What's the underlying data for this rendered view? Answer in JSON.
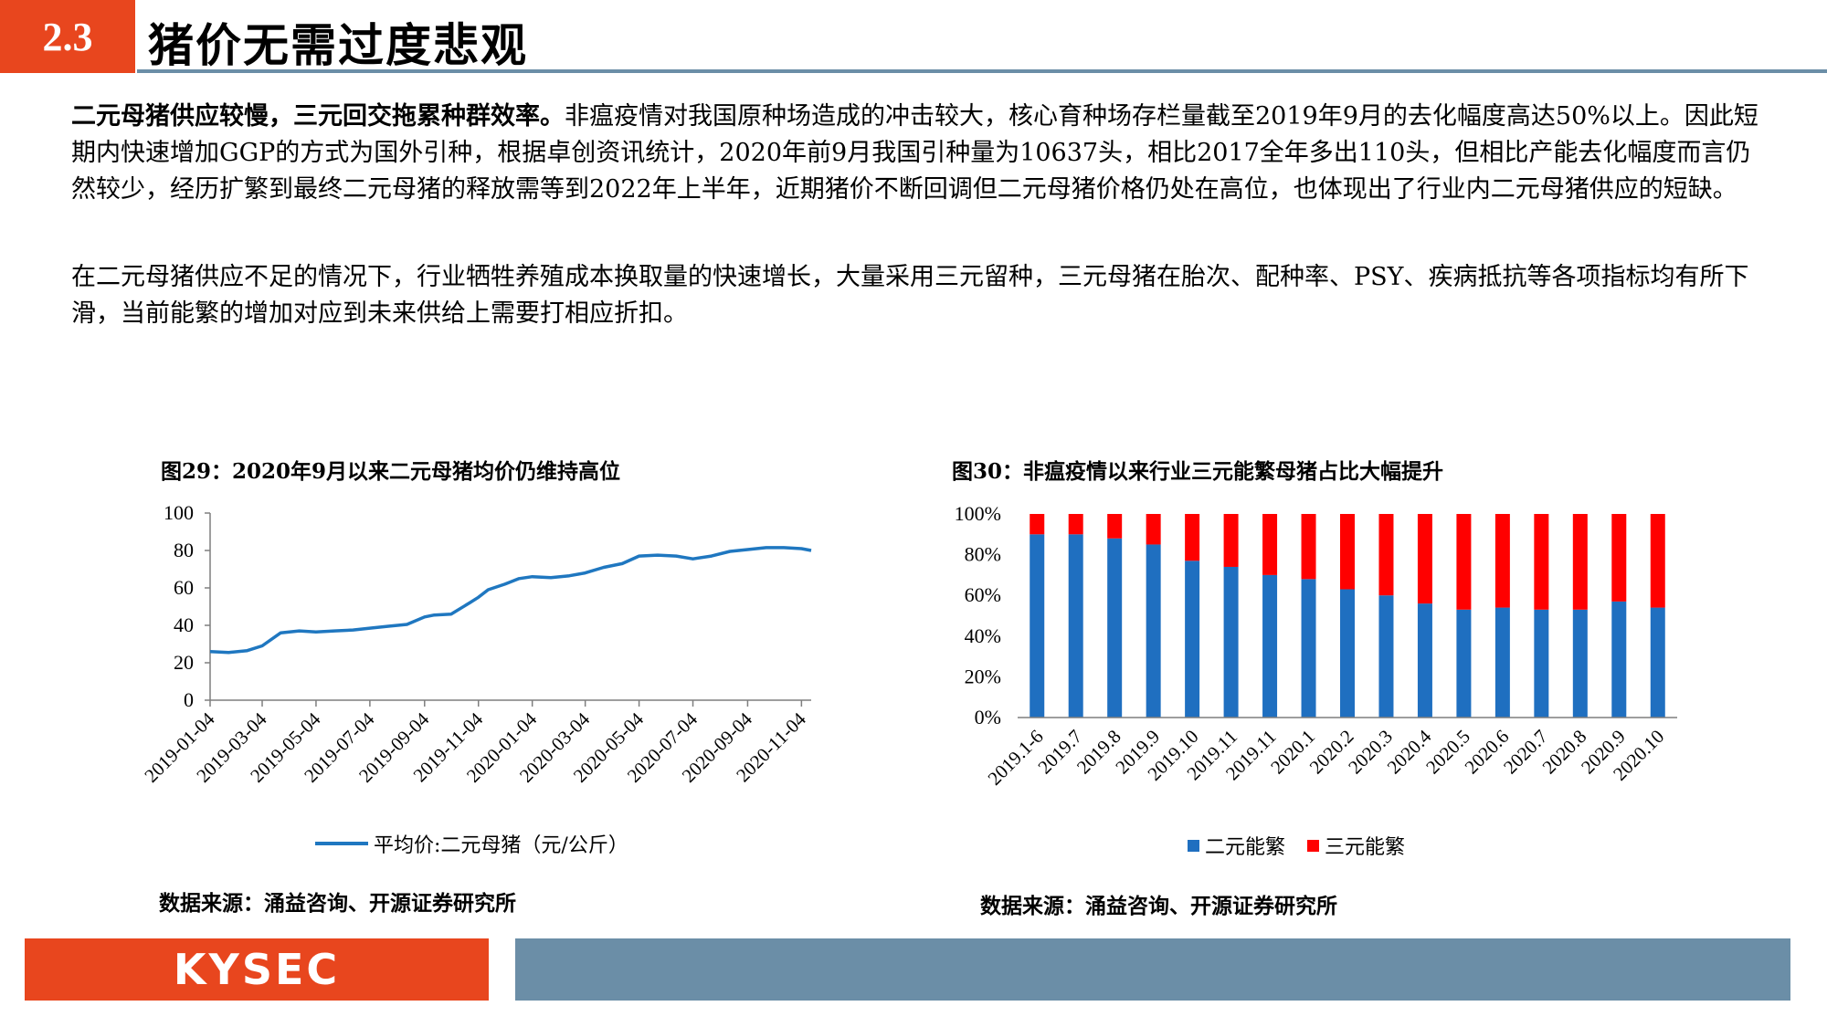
{
  "header": {
    "section_number": "2.3",
    "section_title": "猪价无需过度悲观"
  },
  "paragraphs": {
    "p1_bold": "二元母猪供应较慢，三元回交拖累种群效率。",
    "p1_rest": "非瘟疫情对我国原种场造成的冲击较大，核心育种场存栏量截至2019年9月的去化幅度高达50%以上。因此短期内快速增加GGP的方式为国外引种，根据卓创资讯统计，2020年前9月我国引种量为10637头，相比2017全年多出110头，但相比产能去化幅度而言仍然较少，经历扩繁到最终二元母猪的释放需等到2022年上半年，近期猪价不断回调但二元母猪价格仍处在高位，也体现出了行业内二元母猪供应的短缺。",
    "p2": "在二元母猪供应不足的情况下，行业牺牲养殖成本换取量的快速增长，大量采用三元留种，三元母猪在胎次、配种率、PSY、疾病抵抗等各项指标均有所下滑，当前能繁的增加对应到未来供给上需要打相应折扣。"
  },
  "figures": {
    "fig29_title": "图29：2020年9月以来二元母猪均价仍维持高位",
    "fig29_source": "数据来源：涌益咨询、开源证券研究所",
    "fig30_title": "图30：非瘟疫情以来行业三元能繁母猪占比大幅提升",
    "fig30_source": "数据来源：涌益咨询、开源证券研究所"
  },
  "footer": {
    "logo_text": "KYSEC"
  },
  "chart_data": [
    {
      "type": "line",
      "title": "图29：2020年9月以来二元母猪均价仍维持高位",
      "x_tick_labels": [
        "2019-01-04",
        "2019-03-04",
        "2019-05-04",
        "2019-07-04",
        "2019-09-04",
        "2019-11-04",
        "2020-01-04",
        "2020-03-04",
        "2020-05-04",
        "2020-07-04",
        "2020-09-04",
        "2020-11-04"
      ],
      "x": [
        "2019-01-04",
        "2019-01-25",
        "2019-02-15",
        "2019-03-04",
        "2019-03-25",
        "2019-04-15",
        "2019-05-04",
        "2019-05-25",
        "2019-06-15",
        "2019-07-04",
        "2019-07-25",
        "2019-08-15",
        "2019-09-04",
        "2019-09-15",
        "2019-10-04",
        "2019-10-25",
        "2019-11-04",
        "2019-11-15",
        "2019-12-04",
        "2019-12-20",
        "2020-01-04",
        "2020-01-25",
        "2020-02-15",
        "2020-03-04",
        "2020-03-25",
        "2020-04-15",
        "2020-05-04",
        "2020-05-25",
        "2020-06-15",
        "2020-07-04",
        "2020-07-25",
        "2020-08-15",
        "2020-09-04",
        "2020-09-25",
        "2020-10-15",
        "2020-11-04",
        "2020-11-15"
      ],
      "series": [
        {
          "name": "平均价:二元母猪（元/公斤）",
          "color": "#1f77c0",
          "values": [
            26,
            25.5,
            26.5,
            29,
            36,
            37,
            36.5,
            37,
            37.5,
            38.5,
            39.5,
            40.5,
            44.5,
            45.5,
            46,
            52,
            55,
            59,
            62,
            65,
            66,
            65.5,
            66.5,
            68,
            71,
            73,
            77,
            77.5,
            77,
            75.5,
            77,
            79.5,
            80.5,
            81.5,
            81.5,
            81,
            80
          ]
        }
      ],
      "ylim": [
        0,
        100
      ],
      "y_ticks": [
        0,
        20,
        40,
        60,
        80,
        100
      ],
      "legend": "bottom",
      "grid": false
    },
    {
      "type": "bar",
      "stacked": true,
      "title": "图30：非瘟疫情以来行业三元能繁母猪占比大幅提升",
      "categories": [
        "2019.1-6",
        "2019.7",
        "2019.8",
        "2019.9",
        "2019.10",
        "2019.11",
        "2019.11",
        "2020.1",
        "2020.2",
        "2020.3",
        "2020.4",
        "2020.5",
        "2020.6",
        "2020.7",
        "2020.8",
        "2020.9",
        "2020.10"
      ],
      "series": [
        {
          "name": "二元能繁",
          "color": "#1f6fc0",
          "values": [
            90,
            90,
            88,
            85,
            77,
            74,
            70,
            68,
            63,
            60,
            56,
            53,
            54,
            53,
            53,
            57,
            54
          ]
        },
        {
          "name": "三元能繁",
          "color": "#ff0000",
          "values": [
            10,
            10,
            12,
            15,
            23,
            26,
            30,
            32,
            37,
            40,
            44,
            47,
            46,
            47,
            47,
            43,
            46
          ]
        }
      ],
      "ylim": [
        0,
        100
      ],
      "y_ticks": [
        "0%",
        "20%",
        "40%",
        "60%",
        "80%",
        "100%"
      ],
      "legend": "bottom",
      "grid": false
    }
  ]
}
